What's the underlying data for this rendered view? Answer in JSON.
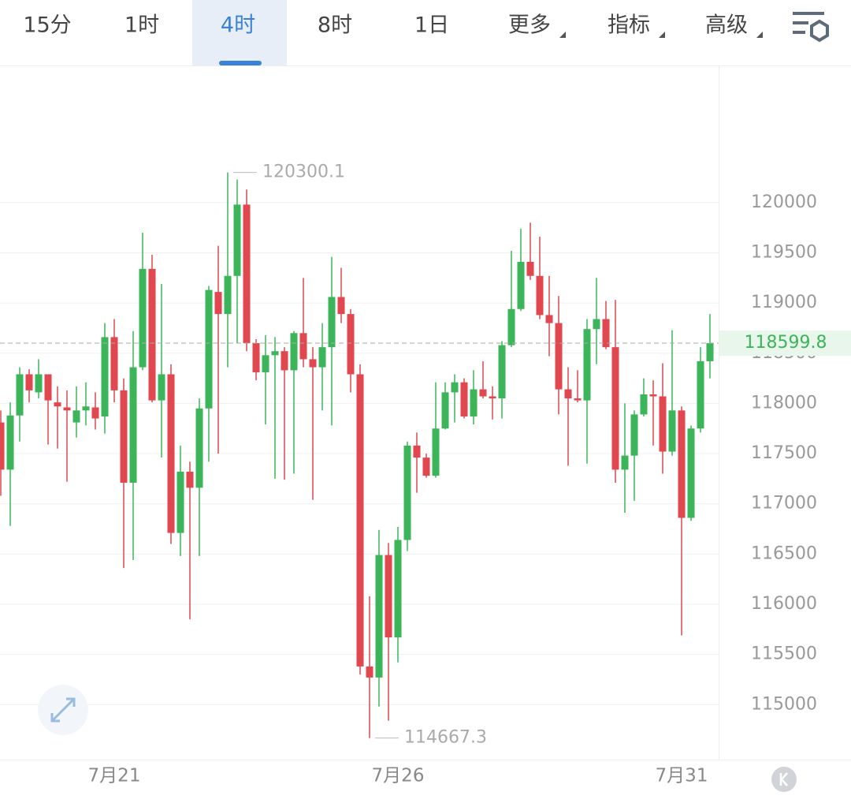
{
  "toolbar": {
    "tabs": [
      "15分",
      "1时",
      "4时",
      "8时",
      "1日",
      "更多",
      "指标",
      "高级"
    ],
    "active": 2
  },
  "chart_data": {
    "type": "candlestick",
    "x": [
      null,
      null,
      null,
      null,
      null,
      null,
      null,
      null,
      null,
      null,
      null,
      null,
      "7月21",
      null,
      null,
      null,
      null,
      null,
      null,
      null,
      null,
      null,
      null,
      null,
      null,
      null,
      null,
      null,
      null,
      null,
      null,
      null,
      null,
      null,
      null,
      null,
      null,
      null,
      null,
      null,
      null,
      null,
      "7月26",
      null,
      null,
      null,
      null,
      null,
      null,
      null,
      null,
      null,
      null,
      null,
      null,
      null,
      null,
      null,
      null,
      null,
      null,
      null,
      null,
      null,
      null,
      null,
      null,
      null,
      null,
      null,
      null,
      null,
      "7月31",
      null,
      null,
      null
    ],
    "open": [
      117810,
      117340,
      117880,
      118290,
      118110,
      118290,
      118010,
      117960,
      117810,
      117930,
      117960,
      117870,
      118660,
      118130,
      117210,
      118360,
      119340,
      118030,
      118290,
      116710,
      117320,
      117160,
      117950,
      119110,
      118890,
      119270,
      119980,
      118600,
      118310,
      118480,
      118520,
      118330,
      118700,
      118440,
      118360,
      118560,
      119060,
      118890,
      118290,
      115380,
      115270,
      116490,
      115670,
      116640,
      117580,
      117460,
      117280,
      117750,
      118110,
      118210,
      117870,
      118140,
      118070,
      118050,
      118580,
      118940,
      119410,
      119270,
      118880,
      118800,
      118140,
      118050,
      118030,
      118740,
      118840,
      118560,
      117340,
      117480,
      117890,
      118090,
      118070,
      117520,
      117930,
      116860,
      117750,
      118420
    ],
    "high": [
      117930,
      118010,
      118360,
      118340,
      118440,
      118290,
      118170,
      118130,
      118170,
      118210,
      118110,
      118800,
      118840,
      118250,
      118720,
      119700,
      119480,
      119190,
      118390,
      117580,
      117420,
      118050,
      119170,
      119570,
      120300.1,
      120230,
      120130,
      118640,
      118680,
      118660,
      118560,
      118720,
      119250,
      118560,
      118800,
      119460,
      119350,
      118940,
      118390,
      116080,
      116740,
      116610,
      116770,
      117620,
      117710,
      117500,
      118210,
      118210,
      118290,
      118250,
      118330,
      118420,
      118170,
      118620,
      119520,
      119740,
      119800,
      119660,
      119270,
      119070,
      118360,
      118330,
      118840,
      119250,
      119020,
      119030,
      118000,
      117930,
      118250,
      118230,
      118400,
      118730,
      117970,
      117780,
      118560,
      118890
    ],
    "low": [
      117080,
      116780,
      117620,
      118010,
      118050,
      117590,
      117550,
      117220,
      117660,
      117780,
      117740,
      117700,
      118010,
      116360,
      116440,
      118330,
      118010,
      117460,
      116600,
      116480,
      115850,
      116480,
      117420,
      117500,
      118360,
      118600,
      118520,
      118230,
      117790,
      117250,
      117240,
      117300,
      118360,
      117040,
      117930,
      117780,
      118800,
      118110,
      115300,
      114667.3,
      114980,
      114840,
      115420,
      116530,
      117110,
      117260,
      117260,
      117740,
      117810,
      117850,
      117790,
      118050,
      117840,
      117850,
      118560,
      118920,
      119230,
      118840,
      118470,
      117890,
      117380,
      118010,
      117400,
      118390,
      118540,
      117210,
      116910,
      117030,
      117870,
      117580,
      117300,
      117480,
      115690,
      116830,
      117710,
      118250
    ],
    "close": [
      117340,
      117880,
      118290,
      118130,
      118290,
      118030,
      117970,
      117930,
      117930,
      117970,
      117850,
      118660,
      118130,
      117210,
      118360,
      119340,
      118030,
      118290,
      116710,
      117320,
      117160,
      117950,
      119130,
      118890,
      119270,
      119980,
      118600,
      118310,
      118480,
      118520,
      118330,
      118700,
      118440,
      118360,
      118560,
      119060,
      118890,
      118290,
      115380,
      115270,
      116490,
      115670,
      116640,
      117580,
      117460,
      117280,
      117750,
      118110,
      118210,
      117870,
      118140,
      118070,
      118050,
      118580,
      118940,
      119410,
      119270,
      118880,
      118800,
      118140,
      118050,
      118030,
      118740,
      118840,
      118560,
      117340,
      117480,
      117890,
      118090,
      118070,
      117520,
      117930,
      116860,
      117750,
      118420,
      118599.8
    ],
    "up_color": "#3cb55a",
    "down_color": "#e0474f",
    "ylim": [
      114460,
      121350
    ],
    "yticks": [
      115000,
      115500,
      116000,
      116500,
      117000,
      117500,
      118000,
      118500,
      119000,
      119500,
      120000
    ],
    "grid": true
  }
}
